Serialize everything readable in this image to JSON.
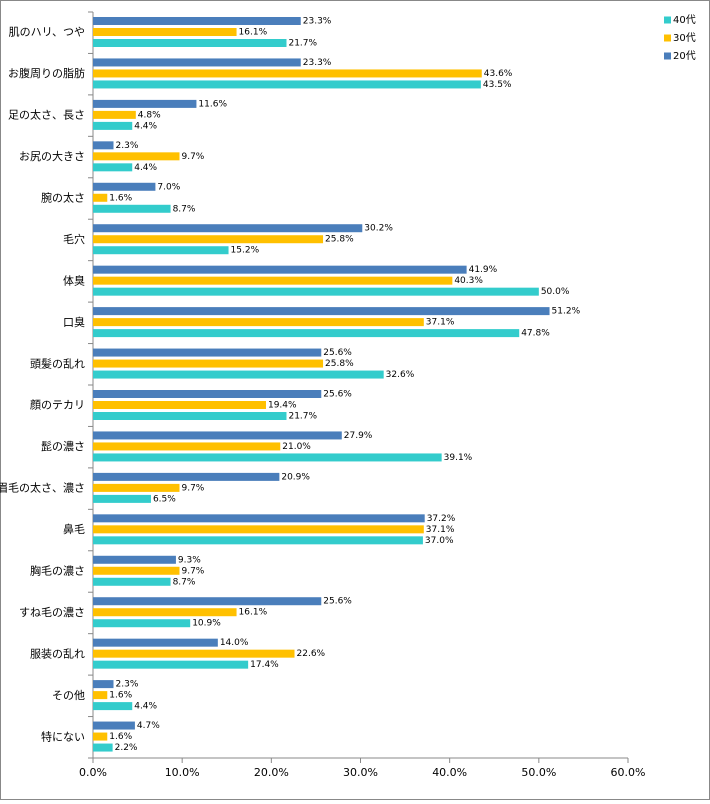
{
  "chart_data": {
    "type": "bar",
    "orientation": "horizontal",
    "categories": [
      "肌のハリ、つや",
      "お腹周りの脂肪",
      "足の太さ、長さ",
      "お尻の大きさ",
      "腕の太さ",
      "毛穴",
      "体臭",
      "口臭",
      "頭髪の乱れ",
      "顔のテカリ",
      "髭の濃さ",
      "眉毛の太さ、濃さ",
      "鼻毛",
      "胸毛の濃さ",
      "すね毛の濃さ",
      "服装の乱れ",
      "その他",
      "特にない"
    ],
    "series": [
      {
        "name": "20代",
        "color": "#4a7ebb",
        "values": [
          23.3,
          23.3,
          11.6,
          2.3,
          7.0,
          30.2,
          41.9,
          51.2,
          25.6,
          25.6,
          27.9,
          20.9,
          37.2,
          9.3,
          25.6,
          14.0,
          2.3,
          4.7
        ],
        "value_labels": [
          "23.3%",
          "23.3%",
          "11.6%",
          "2.3%",
          "7.0%",
          "30.2%",
          "41.9%",
          "51.2%",
          "25.6%",
          "25.6%",
          "27.9%",
          "20.9%",
          "37.2%",
          "9.3%",
          "25.6%",
          "14.0%",
          "2.3%",
          "4.7%"
        ]
      },
      {
        "name": "30代",
        "color": "#ffc000",
        "values": [
          16.1,
          43.6,
          4.8,
          9.7,
          1.6,
          25.8,
          40.3,
          37.1,
          25.8,
          19.4,
          21.0,
          9.7,
          37.1,
          9.7,
          16.1,
          22.6,
          1.6,
          1.6
        ],
        "value_labels": [
          "16.1%",
          "43.6%",
          "4.8%",
          "9.7%",
          "1.6%",
          "25.8%",
          "40.3%",
          "37.1%",
          "25.8%",
          "19.4%",
          "21.0%",
          "9.7%",
          "37.1%",
          "9.7%",
          "16.1%",
          "22.6%",
          "1.6%",
          "1.6%"
        ]
      },
      {
        "name": "40代",
        "color": "#33cccc",
        "values": [
          21.7,
          43.5,
          4.4,
          4.4,
          8.7,
          15.2,
          50.0,
          47.8,
          32.6,
          21.7,
          39.1,
          6.5,
          37.0,
          8.7,
          10.9,
          17.4,
          4.4,
          2.2
        ],
        "value_labels": [
          "21.7%",
          "43.5%",
          "4.4%",
          "4.4%",
          "8.7%",
          "15.2%",
          "50.0%",
          "47.8%",
          "32.6%",
          "21.7%",
          "39.1%",
          "6.5%",
          "37.0%",
          "8.7%",
          "10.9%",
          "17.4%",
          "4.4%",
          "2.2%"
        ]
      }
    ],
    "xlim": [
      0,
      60
    ],
    "xticks": [
      {
        "value": 0,
        "label": "0.0%"
      },
      {
        "value": 10,
        "label": "10.0%"
      },
      {
        "value": 20,
        "label": "20.0%"
      },
      {
        "value": 30,
        "label": "30.0%"
      },
      {
        "value": 40,
        "label": "40.0%"
      },
      {
        "value": 50,
        "label": "50.0%"
      },
      {
        "value": 60,
        "label": "60.0%"
      }
    ],
    "legend": "top-right",
    "grid": false
  }
}
